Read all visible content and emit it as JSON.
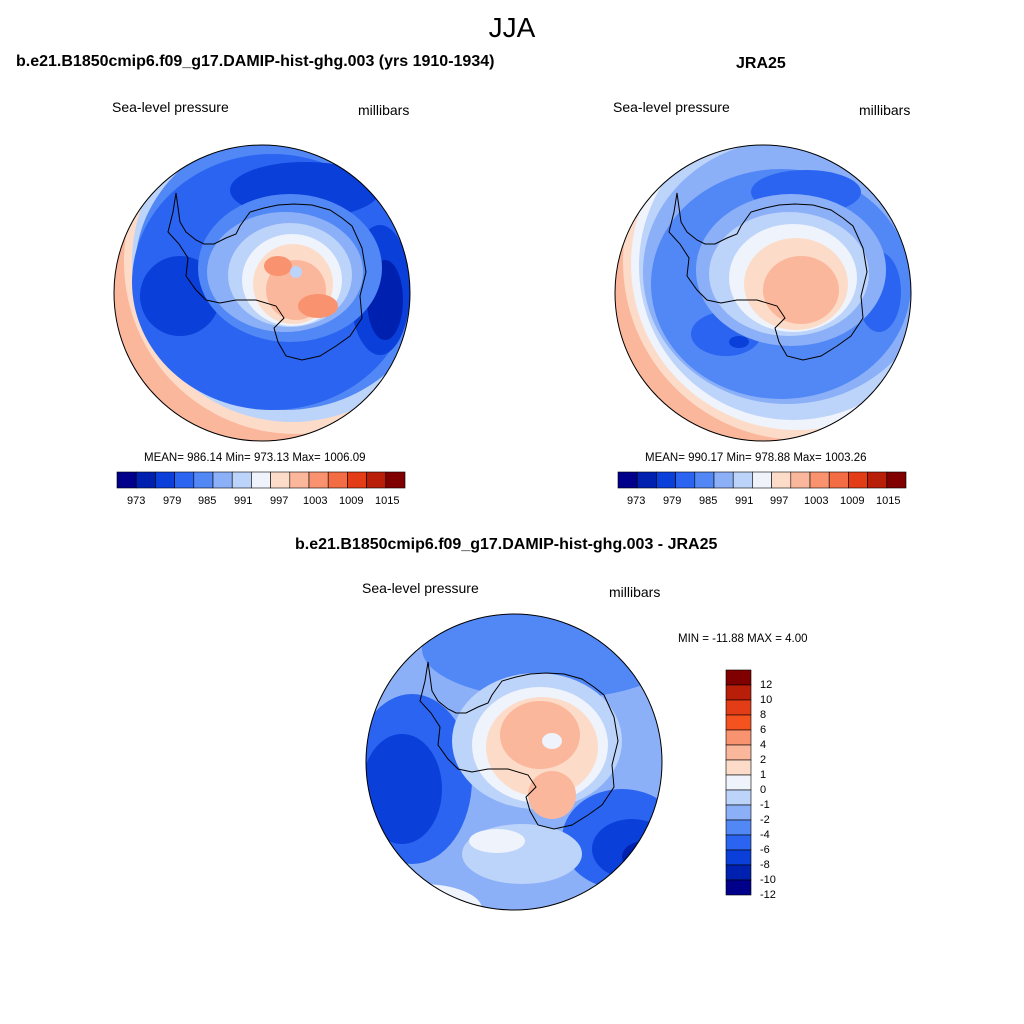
{
  "figure": {
    "title": "JJA",
    "panels": [
      {
        "title": "b.e21.B1850cmip6.f09_g17.DAMIP-hist-ghg.003 (yrs 1910-1934)",
        "left_label": "Sea-level pressure",
        "right_label": "millibars",
        "stats": "MEAN= 986.14  Min= 973.13  Max= 1006.09"
      },
      {
        "title": "JRA25",
        "left_label": "Sea-level pressure",
        "right_label": "millibars",
        "stats": "MEAN= 990.17  Min= 978.88  Max= 1003.26"
      },
      {
        "title": "b.e21.B1850cmip6.f09_g17.DAMIP-hist-ghg.003 - JRA25",
        "left_label": "Sea-level pressure",
        "right_label": "millibars",
        "stats": "MIN = -11.88 MAX =   4.00"
      }
    ]
  },
  "colorbar_abs": {
    "tick_labels": [
      "973",
      "979",
      "985",
      "991",
      "997",
      "1003",
      "1009",
      "1015"
    ],
    "colors": [
      "#00008a",
      "#0021b0",
      "#0a3fd9",
      "#2a64f0",
      "#5288f5",
      "#8cb0f8",
      "#bcd3fa",
      "#eef3fc",
      "#fcdcc8",
      "#fbb79c",
      "#f9926e",
      "#f46c43",
      "#e33d17",
      "#b81e08",
      "#800000"
    ]
  },
  "colorbar_diff": {
    "tick_labels": [
      "12",
      "10",
      "8",
      "6",
      "4",
      "2",
      "1",
      "0",
      "-1",
      "-2",
      "-4",
      "-6",
      "-8",
      "-10",
      "-12"
    ],
    "colors": [
      "#800000",
      "#b81e08",
      "#e33d17",
      "#f4521f",
      "#f9926e",
      "#fbb79c",
      "#fcdcc8",
      "#eef3fc",
      "#bcd3fa",
      "#8cb0f8",
      "#5288f5",
      "#2a64f0",
      "#0a3fd9",
      "#0021b0",
      "#00008a"
    ]
  }
}
